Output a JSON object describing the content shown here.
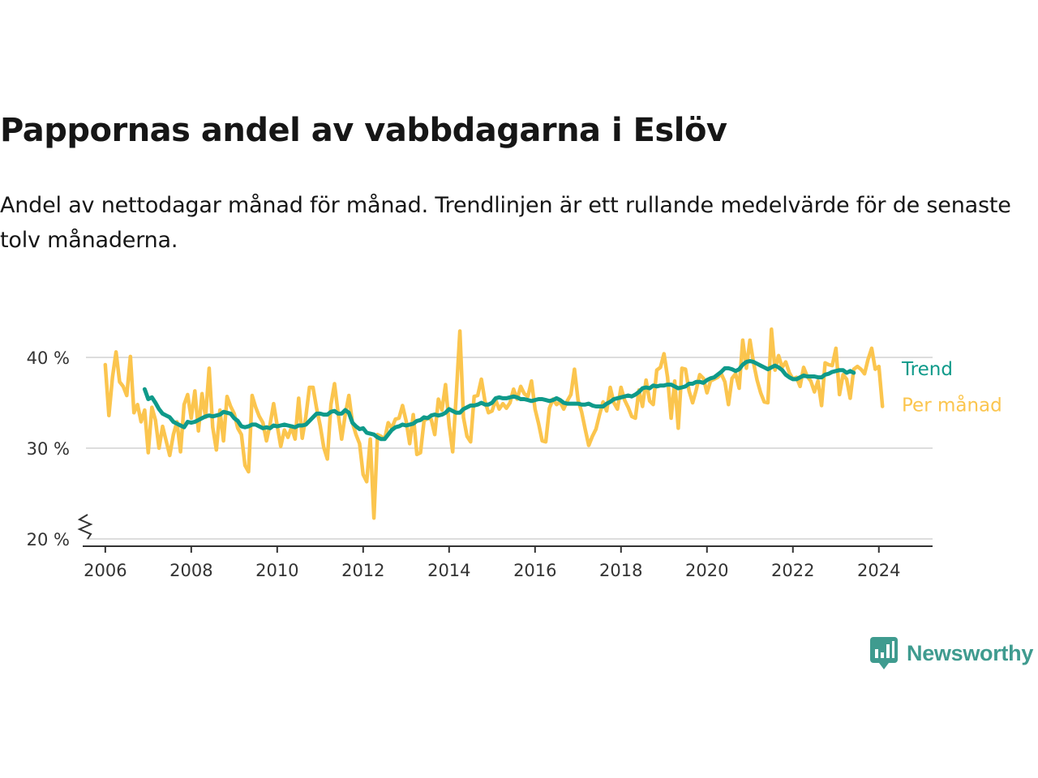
{
  "title": "Pappornas andel av vabbdagarna i Eslöv",
  "subtitle": "Andel av nettodagar månad för månad. Trendlinjen är ett rullande medelvärde för de senaste tolv månaderna.",
  "brand": {
    "name": "Newsworthy",
    "color": "#3f9b8f"
  },
  "colors": {
    "trend": "#0f9a8a",
    "monthly": "#fbc54e",
    "grid": "#dddddd",
    "axis": "#333333"
  },
  "chart_data": {
    "type": "line",
    "title": "Pappornas andel av vabbdagarna i Eslöv",
    "xlabel": "",
    "ylabel": "",
    "xlim": [
      2005.55,
      2025.25
    ],
    "ylim": [
      20,
      45
    ],
    "x_ticks": [
      2006,
      2008,
      2010,
      2012,
      2014,
      2016,
      2018,
      2020,
      2022,
      2024
    ],
    "y_ticks": [
      20,
      30,
      40
    ],
    "y_tick_labels": [
      "20 %",
      "30 %",
      "40 %"
    ],
    "axis_break": true,
    "grid": "horizontal",
    "legend": "direct labels at right end of lines",
    "series": [
      {
        "name": "Per månad",
        "key": "monthly",
        "start": "2006-01",
        "values": [
          39.2,
          33.6,
          37.8,
          40.6,
          37.3,
          36.8,
          35.8,
          40.1,
          33.9,
          34.8,
          32.9,
          34.2,
          29.5,
          34.5,
          33.1,
          30.0,
          32.4,
          30.8,
          29.2,
          31.5,
          32.9,
          29.6,
          34.8,
          35.9,
          33.3,
          36.3,
          31.9,
          36.0,
          33.4,
          38.8,
          32.3,
          29.8,
          34.2,
          30.8,
          35.7,
          34.6,
          33.8,
          32.2,
          31.5,
          28.1,
          27.4,
          35.8,
          34.5,
          33.5,
          32.8,
          30.8,
          32.6,
          34.9,
          32.5,
          30.2,
          32.0,
          31.2,
          32.3,
          31.0,
          35.5,
          31.1,
          33.5,
          36.7,
          36.7,
          34.4,
          32.5,
          30.1,
          28.8,
          34.8,
          37.1,
          33.9,
          31.0,
          33.7,
          35.8,
          32.8,
          31.5,
          30.5,
          27.1,
          26.3,
          31.0,
          22.3,
          31.5,
          31.3,
          31.0,
          32.8,
          32.2,
          33.2,
          33.3,
          34.7,
          33.0,
          30.5,
          33.7,
          29.3,
          29.5,
          33.0,
          33.3,
          33.2,
          31.5,
          35.4,
          34.2,
          37.0,
          32.6,
          29.6,
          35.8,
          42.9,
          33.4,
          31.3,
          30.7,
          35.7,
          35.8,
          37.6,
          35.2,
          33.9,
          34.1,
          35.3,
          34.3,
          34.9,
          34.4,
          35.0,
          36.5,
          35.4,
          36.8,
          36.0,
          35.7,
          37.4,
          34.3,
          32.7,
          30.8,
          30.7,
          34.4,
          35.4,
          34.8,
          35.1,
          34.3,
          35.2,
          35.9,
          38.7,
          35.3,
          34.0,
          32.1,
          30.3,
          31.3,
          32.1,
          33.7,
          35.1,
          34.1,
          36.7,
          35.0,
          34.3,
          36.7,
          35.3,
          34.5,
          33.5,
          33.3,
          36.4,
          34.6,
          37.5,
          35.2,
          34.8,
          38.6,
          38.9,
          40.4,
          37.8,
          33.3,
          37.4,
          32.2,
          38.8,
          38.7,
          36.3,
          35.0,
          36.4,
          38.1,
          37.7,
          36.1,
          37.4,
          37.6,
          37.8,
          38.2,
          37.3,
          34.8,
          37.7,
          38.2,
          36.6,
          41.9,
          38.8,
          41.9,
          39.4,
          37.5,
          36.1,
          35.1,
          35.0,
          43.1,
          38.6,
          40.2,
          38.9,
          39.5,
          38.3,
          37.6,
          37.8,
          36.8,
          38.9,
          37.9,
          37.4,
          36.2,
          37.4,
          34.7,
          39.4,
          39.2,
          39.1,
          41.0,
          35.9,
          38.1,
          37.6,
          35.5,
          38.7,
          39.0,
          38.7,
          38.2,
          39.8,
          41.0,
          38.7,
          39.0,
          34.6
        ]
      },
      {
        "name": "Trend",
        "key": "trend",
        "start": "2006-12",
        "values": [
          36.5,
          35.4,
          35.6,
          35.0,
          34.3,
          33.8,
          33.6,
          33.4,
          32.9,
          32.7,
          32.5,
          32.3,
          32.9,
          32.8,
          32.9,
          33.1,
          33.3,
          33.5,
          33.6,
          33.5,
          33.6,
          33.7,
          34.0,
          33.9,
          33.8,
          33.3,
          33.0,
          32.4,
          32.3,
          32.4,
          32.6,
          32.6,
          32.4,
          32.2,
          32.3,
          32.2,
          32.5,
          32.4,
          32.5,
          32.6,
          32.5,
          32.4,
          32.3,
          32.5,
          32.5,
          32.6,
          33.0,
          33.4,
          33.8,
          33.8,
          33.7,
          33.7,
          34.0,
          34.1,
          33.8,
          33.8,
          34.2,
          33.9,
          32.8,
          32.4,
          32.1,
          32.2,
          31.7,
          31.6,
          31.5,
          31.2,
          31.0,
          31.0,
          31.5,
          32.0,
          32.3,
          32.4,
          32.6,
          32.5,
          32.6,
          32.7,
          33.0,
          33.1,
          33.4,
          33.3,
          33.6,
          33.7,
          33.6,
          33.7,
          33.9,
          34.3,
          34.1,
          33.9,
          33.9,
          34.3,
          34.5,
          34.7,
          34.7,
          34.8,
          35.0,
          34.8,
          34.8,
          35.0,
          35.5,
          35.6,
          35.5,
          35.5,
          35.6,
          35.7,
          35.6,
          35.4,
          35.4,
          35.3,
          35.2,
          35.3,
          35.4,
          35.4,
          35.3,
          35.2,
          35.3,
          35.5,
          35.3,
          35.0,
          34.9,
          34.9,
          34.9,
          34.9,
          34.8,
          34.8,
          34.9,
          34.7,
          34.6,
          34.6,
          34.6,
          34.9,
          35.1,
          35.4,
          35.5,
          35.6,
          35.7,
          35.8,
          35.7,
          35.9,
          36.2,
          36.6,
          36.7,
          36.6,
          36.9,
          36.8,
          36.9,
          36.9,
          37.0,
          37.0,
          36.8,
          36.6,
          36.7,
          36.8,
          37.1,
          37.1,
          37.3,
          37.3,
          37.2,
          37.5,
          37.7,
          37.8,
          38.1,
          38.4,
          38.8,
          38.8,
          38.7,
          38.5,
          38.7,
          39.2,
          39.5,
          39.6,
          39.5,
          39.3,
          39.1,
          38.9,
          38.7,
          38.9,
          39.1,
          38.9,
          38.6,
          38.1,
          37.8,
          37.6,
          37.6,
          37.8,
          38.0,
          37.9,
          37.9,
          37.9,
          37.8,
          37.8,
          38.1,
          38.2,
          38.4,
          38.5,
          38.6,
          38.6,
          38.3,
          38.5,
          38.3
        ]
      }
    ]
  }
}
